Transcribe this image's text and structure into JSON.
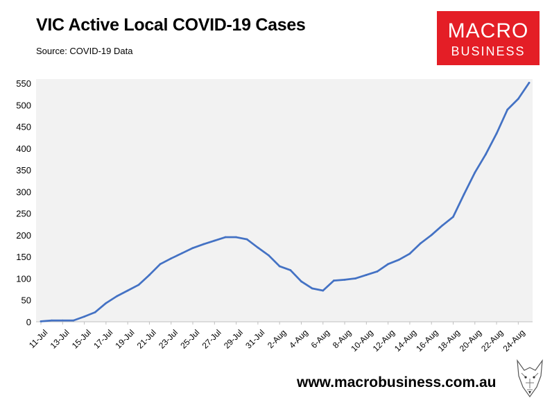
{
  "header": {
    "title": "VIC Active Local COVID-19 Cases",
    "subtitle": "Source: COVID-19 Data"
  },
  "logo": {
    "line1": "MACRO",
    "line2": "BUSINESS"
  },
  "footer": {
    "url": "www.macrobusiness.com.au"
  },
  "colors": {
    "line": "#4472c4",
    "plot_bg": "#f2f2f2",
    "logo_red": "#e41e26"
  },
  "chart_data": {
    "type": "line",
    "title": "VIC Active Local COVID-19 Cases",
    "xlabel": "",
    "ylabel": "",
    "ylim": [
      0,
      550
    ],
    "yticks": [
      0,
      50,
      100,
      150,
      200,
      250,
      300,
      350,
      400,
      450,
      500,
      550
    ],
    "x_tick_labels": [
      "11-Jul",
      "13-Jul",
      "15-Jul",
      "17-Jul",
      "19-Jul",
      "21-Jul",
      "23-Jul",
      "25-Jul",
      "27-Jul",
      "29-Jul",
      "31-Jul",
      "2-Aug",
      "4-Aug",
      "6-Aug",
      "8-Aug",
      "10-Aug",
      "12-Aug",
      "14-Aug",
      "16-Aug",
      "18-Aug",
      "20-Aug",
      "22-Aug",
      "24-Aug"
    ],
    "x": [
      "11-Jul",
      "12-Jul",
      "13-Jul",
      "14-Jul",
      "15-Jul",
      "16-Jul",
      "17-Jul",
      "18-Jul",
      "19-Jul",
      "20-Jul",
      "21-Jul",
      "22-Jul",
      "23-Jul",
      "24-Jul",
      "25-Jul",
      "26-Jul",
      "27-Jul",
      "28-Jul",
      "29-Jul",
      "30-Jul",
      "31-Jul",
      "1-Aug",
      "2-Aug",
      "3-Aug",
      "4-Aug",
      "5-Aug",
      "6-Aug",
      "7-Aug",
      "8-Aug",
      "9-Aug",
      "10-Aug",
      "11-Aug",
      "12-Aug",
      "13-Aug",
      "14-Aug",
      "15-Aug",
      "16-Aug",
      "17-Aug",
      "18-Aug",
      "19-Aug",
      "20-Aug",
      "21-Aug",
      "22-Aug",
      "23-Aug",
      "24-Aug",
      "25-Aug"
    ],
    "series": [
      {
        "values": [
          1,
          3,
          3,
          3,
          12,
          22,
          43,
          59,
          72,
          85,
          108,
          133,
          146,
          158,
          170,
          179,
          187,
          195,
          195,
          190,
          171,
          153,
          128,
          119,
          93,
          77,
          72,
          95,
          97,
          100,
          108,
          116,
          133,
          143,
          157,
          181,
          200,
          222,
          242,
          294,
          344,
          386,
          434,
          489,
          514,
          551
        ]
      }
    ],
    "grid": false,
    "legend": "none"
  }
}
